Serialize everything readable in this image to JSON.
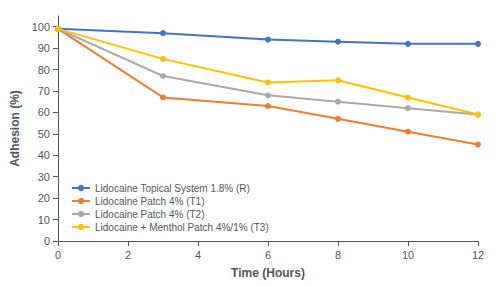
{
  "chart_data": {
    "type": "line",
    "xlabel": "Time (Hours)",
    "ylabel": "Adhesion (%)",
    "x": [
      0,
      3,
      6,
      8,
      10,
      12
    ],
    "series": [
      {
        "name": "Lidocaine Topical System 1.8% (R)",
        "color": "#4472C4",
        "values": [
          99,
          97,
          94,
          93,
          92,
          92
        ]
      },
      {
        "name": "Lidocaine Patch 4% (T1)",
        "color": "#ED7D31",
        "values": [
          99,
          67,
          63,
          57,
          51,
          45
        ]
      },
      {
        "name": "Lidocaine Patch 4% (T2)",
        "color": "#A9A9A9",
        "values": [
          99,
          77,
          68,
          65,
          62,
          59
        ]
      },
      {
        "name": "Lidocaine + Menthol Patch 4%/1% (T3)",
        "color": "#FFC000",
        "values": [
          99,
          85,
          74,
          75,
          67,
          59
        ]
      }
    ],
    "xlim": [
      0,
      12
    ],
    "ylim": [
      0,
      105
    ],
    "xticks": [
      0,
      2,
      4,
      6,
      8,
      10,
      12
    ],
    "yticks": [
      0,
      10,
      20,
      30,
      40,
      50,
      60,
      70,
      80,
      90,
      100
    ],
    "marker": "circle",
    "grid": false,
    "legend": "lower left"
  }
}
